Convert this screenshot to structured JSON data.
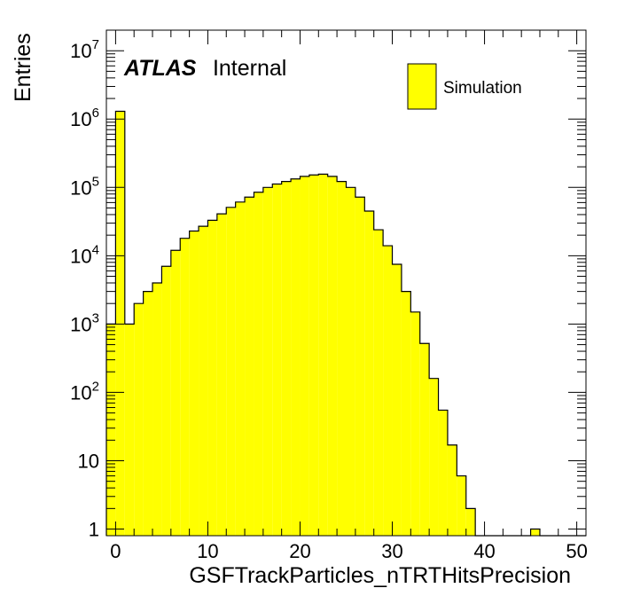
{
  "chart_data": {
    "type": "bar",
    "style": "histogram-filled",
    "xlabel": "GSFTrackParticles_nTRTHitsPrecision",
    "ylabel": "Entries",
    "x_ticks": [
      0,
      10,
      20,
      30,
      40,
      50
    ],
    "xlim": [
      -1,
      51
    ],
    "ylim": [
      0.8,
      20000000
    ],
    "y_scale": "log",
    "y_ticks": [
      {
        "value": 1,
        "base": "1",
        "exp": ""
      },
      {
        "value": 10,
        "base": "10",
        "exp": ""
      },
      {
        "value": 100,
        "base": "10",
        "exp": "2"
      },
      {
        "value": 1000,
        "base": "10",
        "exp": "3"
      },
      {
        "value": 10000,
        "base": "10",
        "exp": "4"
      },
      {
        "value": 100000,
        "base": "10",
        "exp": "5"
      },
      {
        "value": 1000000,
        "base": "10",
        "exp": "6"
      },
      {
        "value": 10000000,
        "base": "10",
        "exp": "7"
      }
    ],
    "bin_width": 1,
    "bins_low_edge": [
      -1,
      0,
      1,
      2,
      3,
      4,
      5,
      6,
      7,
      8,
      9,
      10,
      11,
      12,
      13,
      14,
      15,
      16,
      17,
      18,
      19,
      20,
      21,
      22,
      23,
      24,
      25,
      26,
      27,
      28,
      29,
      30,
      31,
      32,
      33,
      34,
      35,
      36,
      37,
      38,
      39,
      40,
      41,
      42,
      43,
      44,
      45,
      46,
      47,
      48,
      49,
      50
    ],
    "values": [
      1000,
      1300000,
      1000,
      2000,
      3000,
      4000,
      7000,
      12000,
      18000,
      23000,
      27000,
      33000,
      41000,
      51000,
      61000,
      72000,
      85000,
      100000,
      112000,
      122000,
      133000,
      145000,
      152000,
      156000,
      145000,
      122000,
      100000,
      72000,
      45000,
      24000,
      14000,
      7500,
      3000,
      1500,
      520,
      160,
      55,
      17,
      6,
      2,
      0,
      0,
      0,
      0,
      0,
      0,
      1,
      0,
      0,
      0,
      0,
      0
    ],
    "fill_color": "#ffff00",
    "line_color": "#000000",
    "legend": {
      "entries": [
        "Simulation"
      ],
      "position": "top-right"
    },
    "annotations": {
      "atlas": "ATLAS",
      "label": "Internal"
    },
    "grid": false
  }
}
